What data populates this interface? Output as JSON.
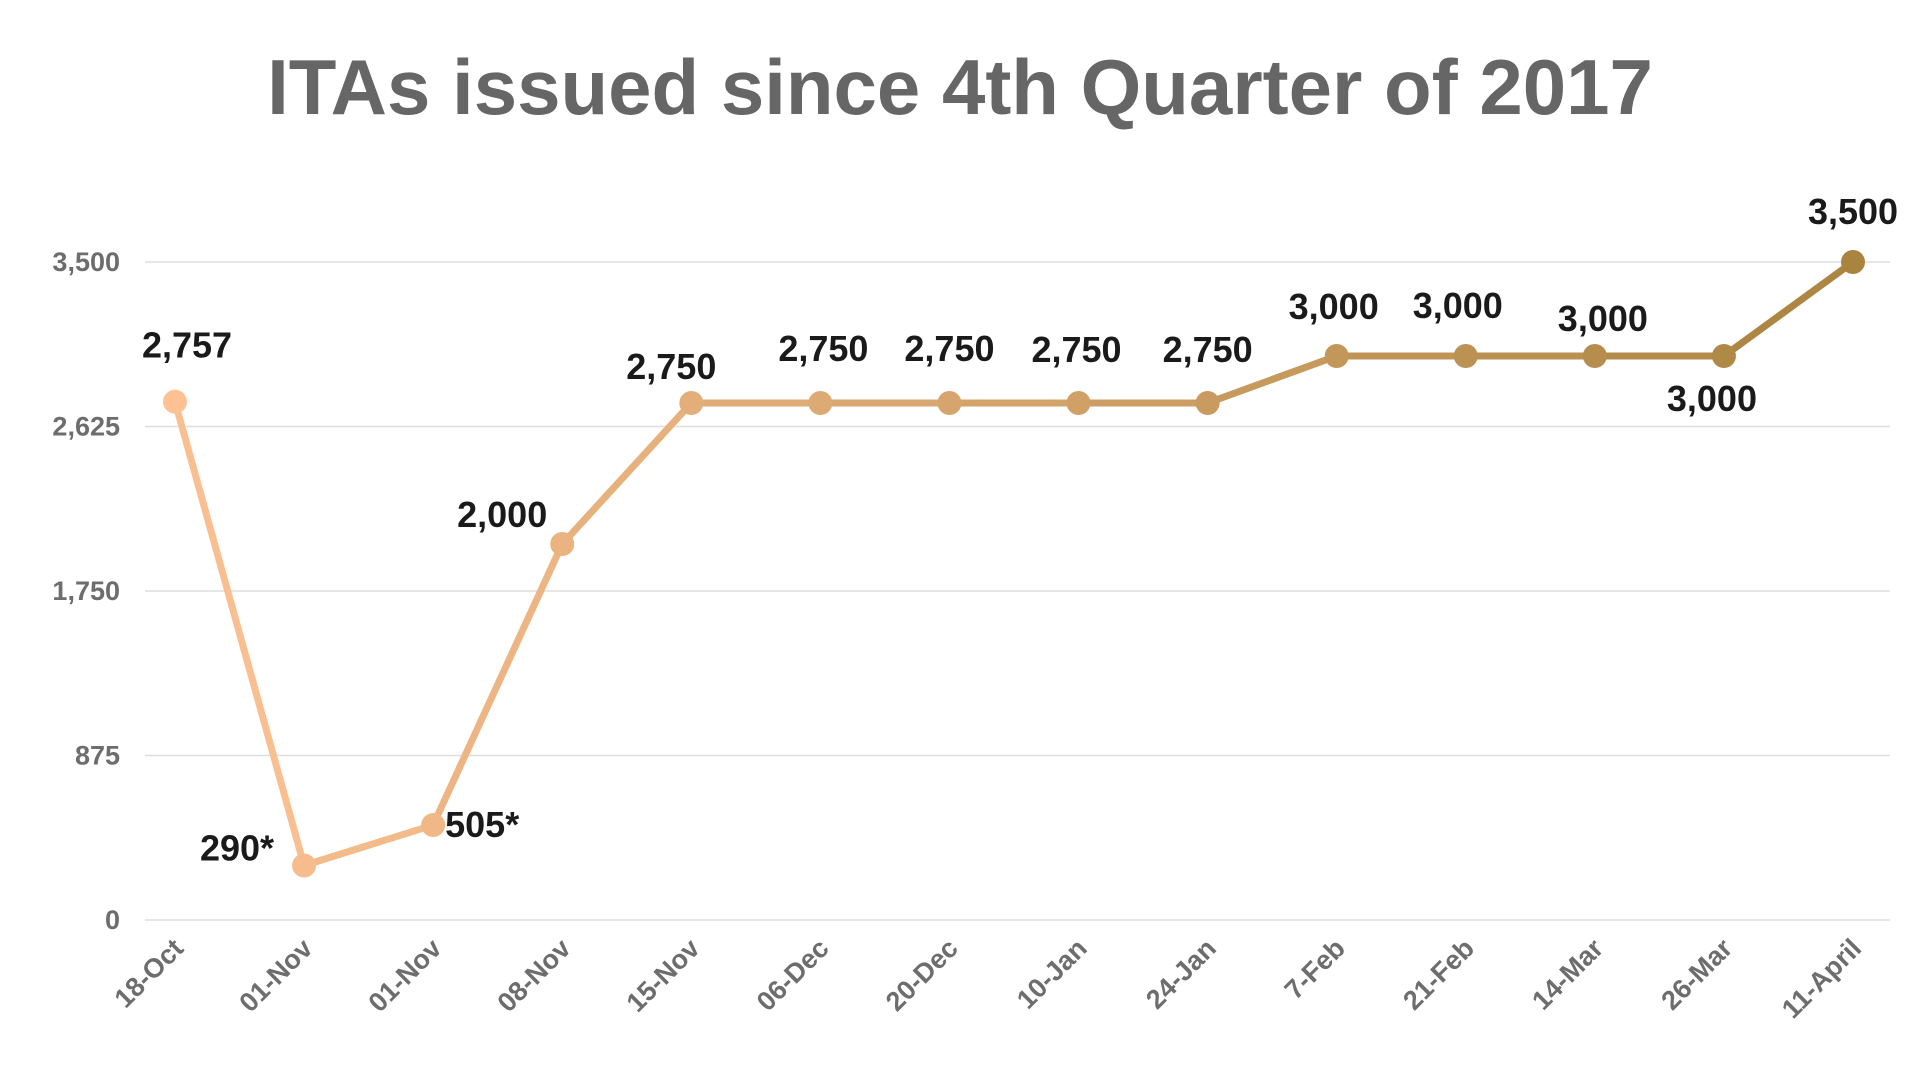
{
  "chart_data": {
    "type": "line",
    "title": "ITAs issued since 4th Quarter of 2017",
    "xlabel": "",
    "ylabel": "",
    "categories": [
      "18-Oct",
      "01-Nov",
      "01-Nov",
      "08-Nov",
      "15-Nov",
      "06-Dec",
      "20-Dec",
      "10-Jan",
      "24-Jan",
      "7-Feb",
      "21-Feb",
      "14-Mar",
      "26-Mar",
      "11-April"
    ],
    "values": [
      2757,
      290,
      505,
      2000,
      2750,
      2750,
      2750,
      2750,
      2750,
      3000,
      3000,
      3000,
      3000,
      3500
    ],
    "data_labels": [
      "2,757",
      "290*",
      "505*",
      "2,000",
      "2,750",
      "2,750",
      "2,750",
      "2,750",
      "2,750",
      "3,000",
      "3,000",
      "3,000",
      "3,000",
      "3,500"
    ],
    "ylim": [
      0,
      3500
    ],
    "yticks": [
      0,
      875,
      1750,
      2625,
      3500
    ],
    "ytick_labels": [
      "0",
      "875",
      "1,750",
      "2,625",
      "3,500"
    ],
    "grid": true,
    "legend": "none",
    "colors": {
      "start": "#fdc194",
      "end": "#a9843f",
      "title": "#666666",
      "ticks": "#6d6d6d",
      "labels": "#1a1a1a",
      "grid": "#dedede"
    }
  }
}
